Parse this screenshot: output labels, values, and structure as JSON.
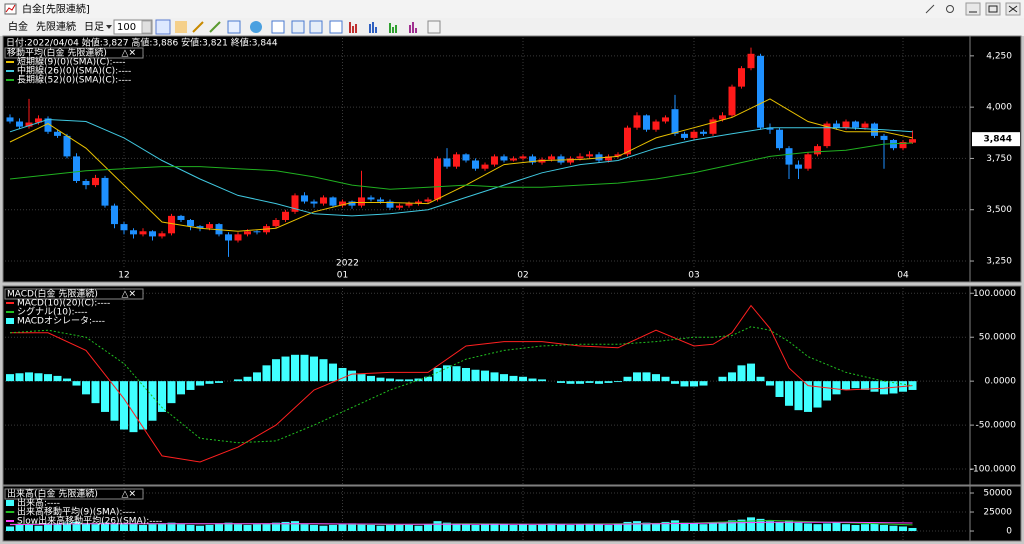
{
  "window": {
    "title": "白金[先限連続]"
  },
  "toolbar": {
    "symbol": "白金",
    "contract": "先限連続",
    "period": "日足",
    "count": 100
  },
  "chart_data": [
    {
      "type": "candlestick",
      "header": "日付:2022/04/04 始値:3,827 高値:3,886 安値:3,821 終値:3,844",
      "legend_title": "移動平均(白金 先限連続)",
      "up_color": "#ff1a1a",
      "down_color": "#1e90ff",
      "open": [
        3950,
        3930,
        3905,
        3925,
        3945,
        3880,
        3860,
        3760,
        3640,
        3620,
        3655,
        3520,
        3430,
        3400,
        3380,
        3395,
        3370,
        3385,
        3470,
        3450,
        3420,
        3410,
        3430,
        3380,
        3350,
        3380,
        3395,
        3390,
        3420,
        3450,
        3490,
        3570,
        3540,
        3530,
        3560,
        3520,
        3540,
        3520,
        3560,
        3550,
        3540,
        3510,
        3520,
        3530,
        3540,
        3550,
        3750,
        3710,
        3770,
        3740,
        3700,
        3720,
        3760,
        3740,
        3750,
        3760,
        3730,
        3745,
        3760,
        3730,
        3750,
        3760,
        3770,
        3740,
        3760,
        3770,
        3900,
        3960,
        3890,
        3930,
        3990,
        3870,
        3850,
        3880,
        3870,
        3940,
        3960,
        4100,
        4190,
        4250,
        3900,
        3890,
        3800,
        3720,
        3700,
        3770,
        3810,
        3920,
        3900,
        3930,
        3900,
        3920,
        3860,
        3840,
        3800,
        3827
      ],
      "high": [
        3965,
        3945,
        4040,
        3960,
        3955,
        3890,
        3870,
        3775,
        3650,
        3670,
        3665,
        3530,
        3440,
        3410,
        3410,
        3400,
        3395,
        3480,
        3475,
        3455,
        3425,
        3440,
        3435,
        3390,
        3390,
        3405,
        3400,
        3430,
        3460,
        3500,
        3580,
        3585,
        3550,
        3570,
        3565,
        3550,
        3545,
        3690,
        3570,
        3560,
        3550,
        3530,
        3540,
        3550,
        3560,
        3760,
        3800,
        3780,
        3775,
        3750,
        3730,
        3770,
        3770,
        3760,
        3770,
        3770,
        3755,
        3770,
        3770,
        3760,
        3775,
        3785,
        3780,
        3770,
        3780,
        3910,
        3975,
        3965,
        3940,
        3960,
        4060,
        3880,
        3890,
        3890,
        3950,
        3975,
        4110,
        4200,
        4290,
        4260,
        3920,
        3900,
        3810,
        3740,
        3780,
        3820,
        3930,
        3935,
        3940,
        3935,
        3930,
        3925,
        3870,
        3845,
        3840,
        3886
      ],
      "low": [
        3920,
        3895,
        3895,
        3915,
        3870,
        3850,
        3750,
        3630,
        3600,
        3610,
        3510,
        3410,
        3380,
        3360,
        3370,
        3350,
        3360,
        3375,
        3440,
        3400,
        3395,
        3400,
        3370,
        3270,
        3340,
        3370,
        3380,
        3380,
        3410,
        3440,
        3480,
        3530,
        3510,
        3520,
        3510,
        3510,
        3505,
        3510,
        3540,
        3530,
        3500,
        3500,
        3510,
        3520,
        3530,
        3540,
        3700,
        3700,
        3730,
        3690,
        3690,
        3710,
        3730,
        3735,
        3740,
        3720,
        3720,
        3735,
        3720,
        3720,
        3740,
        3750,
        3730,
        3730,
        3750,
        3760,
        3890,
        3880,
        3880,
        3920,
        3860,
        3840,
        3840,
        3860,
        3860,
        3930,
        3950,
        4090,
        4180,
        3890,
        3870,
        3790,
        3650,
        3650,
        3690,
        3760,
        3800,
        3890,
        3890,
        3890,
        3890,
        3850,
        3700,
        3790,
        3790,
        3821
      ],
      "close": [
        3930,
        3905,
        3925,
        3945,
        3880,
        3860,
        3760,
        3640,
        3620,
        3655,
        3520,
        3430,
        3400,
        3380,
        3395,
        3370,
        3385,
        3470,
        3450,
        3420,
        3410,
        3430,
        3380,
        3350,
        3380,
        3395,
        3390,
        3420,
        3450,
        3490,
        3570,
        3540,
        3530,
        3560,
        3520,
        3540,
        3520,
        3560,
        3550,
        3540,
        3510,
        3520,
        3530,
        3540,
        3550,
        3750,
        3710,
        3770,
        3740,
        3700,
        3720,
        3760,
        3740,
        3750,
        3760,
        3730,
        3745,
        3760,
        3730,
        3750,
        3760,
        3770,
        3740,
        3760,
        3770,
        3900,
        3960,
        3890,
        3930,
        3950,
        3870,
        3850,
        3880,
        3870,
        3940,
        3960,
        4100,
        4190,
        4260,
        3900,
        3890,
        3800,
        3720,
        3700,
        3770,
        3810,
        3920,
        3900,
        3930,
        3900,
        3920,
        3860,
        3840,
        3800,
        3830,
        3844
      ],
      "series": [
        {
          "name": "短期線(9)(0)(SMA)(C):----",
          "color": "#e8c000",
          "x": [
            0,
            4,
            8,
            12,
            16,
            20,
            24,
            28,
            32,
            36,
            40,
            44,
            48,
            52,
            56,
            60,
            64,
            68,
            72,
            76,
            80,
            84,
            88,
            92,
            95
          ],
          "values": [
            3830,
            3920,
            3800,
            3620,
            3440,
            3410,
            3395,
            3410,
            3490,
            3535,
            3535,
            3530,
            3620,
            3720,
            3740,
            3745,
            3760,
            3850,
            3900,
            3950,
            4040,
            3930,
            3880,
            3880,
            3850
          ]
        },
        {
          "name": "中期線(26)(0)(SMA)(C):----",
          "color": "#40c8e0",
          "x": [
            0,
            4,
            8,
            12,
            16,
            20,
            24,
            28,
            32,
            36,
            40,
            44,
            48,
            52,
            56,
            60,
            64,
            68,
            72,
            76,
            80,
            84,
            88,
            92,
            95
          ],
          "values": [
            3880,
            3940,
            3930,
            3850,
            3740,
            3650,
            3570,
            3530,
            3480,
            3470,
            3480,
            3500,
            3560,
            3620,
            3680,
            3720,
            3740,
            3800,
            3840,
            3870,
            3900,
            3900,
            3900,
            3890,
            3880
          ]
        },
        {
          "name": "長期線(52)(0)(SMA)(C):----",
          "color": "#20b020",
          "x": [
            0,
            4,
            8,
            12,
            16,
            20,
            24,
            28,
            32,
            36,
            40,
            44,
            48,
            52,
            56,
            60,
            64,
            68,
            72,
            76,
            80,
            84,
            88,
            92,
            95
          ],
          "values": [
            3650,
            3670,
            3690,
            3700,
            3710,
            3710,
            3700,
            3690,
            3660,
            3620,
            3600,
            3610,
            3620,
            3610,
            3610,
            3620,
            3630,
            3650,
            3680,
            3720,
            3760,
            3780,
            3790,
            3820,
            3825
          ]
        }
      ],
      "ylim": [
        3216,
        4337
      ],
      "yticks": [
        {
          "value": 3250,
          "label": "3,250"
        },
        {
          "value": 3500,
          "label": "3,500"
        },
        {
          "value": 3750,
          "label": "3,750"
        },
        {
          "value": 4000,
          "label": "4,000"
        },
        {
          "value": 4250,
          "label": "4,250"
        }
      ],
      "xticks": [
        12,
        {
          "value": 35,
          "label": "01"
        },
        {
          "value": 54,
          "label": "02"
        },
        {
          "value": 72,
          "label": "03"
        },
        {
          "value": 94,
          "label": "04"
        }
      ],
      "year_label": "2022",
      "last_price": {
        "value": 3844,
        "label": "3,844"
      },
      "grid": true
    },
    {
      "type": "macd",
      "legend_title": "MACD(白金 先限連続)",
      "series": [
        {
          "name": "MACD(10)(20)(C):----",
          "color": "#ff2020",
          "x": [
            0,
            4,
            8,
            12,
            16,
            20,
            24,
            28,
            32,
            36,
            40,
            44,
            48,
            52,
            56,
            60,
            64,
            68,
            72,
            74,
            76,
            78,
            80,
            82,
            84,
            88,
            92,
            95
          ],
          "values": [
            55,
            55,
            35,
            -20,
            -85,
            -92,
            -75,
            -50,
            -10,
            8,
            10,
            10,
            40,
            45,
            45,
            40,
            38,
            58,
            40,
            42,
            55,
            86,
            60,
            15,
            -5,
            -10,
            -8,
            -5
          ]
        },
        {
          "name": "シグナル(10):----",
          "color": "#20c020",
          "dashed": true,
          "x": [
            0,
            4,
            8,
            12,
            16,
            20,
            24,
            28,
            32,
            36,
            40,
            44,
            48,
            52,
            56,
            60,
            64,
            68,
            72,
            74,
            76,
            78,
            80,
            82,
            84,
            88,
            92,
            95
          ],
          "values": [
            55,
            58,
            50,
            20,
            -30,
            -65,
            -70,
            -68,
            -50,
            -30,
            -10,
            5,
            25,
            35,
            40,
            42,
            42,
            45,
            50,
            50,
            52,
            62,
            58,
            45,
            28,
            10,
            0,
            -5
          ]
        },
        {
          "name": "MACDオシレータ:----",
          "color": "#40ffff",
          "type": "bar",
          "values": [
            8,
            9,
            10,
            9,
            8,
            6,
            3,
            -5,
            -15,
            -25,
            -35,
            -45,
            -55,
            -58,
            -55,
            -45,
            -35,
            -25,
            -15,
            -10,
            -5,
            -3,
            -2,
            0,
            2,
            5,
            10,
            18,
            25,
            28,
            30,
            30,
            28,
            25,
            20,
            15,
            12,
            8,
            6,
            4,
            3,
            2,
            2,
            3,
            5,
            15,
            18,
            17,
            15,
            13,
            12,
            10,
            8,
            6,
            5,
            3,
            2,
            0,
            -2,
            -3,
            -3,
            -2,
            -3,
            -2,
            -1,
            5,
            10,
            10,
            8,
            5,
            -3,
            -6,
            -6,
            -5,
            0,
            5,
            10,
            18,
            20,
            5,
            -5,
            -18,
            -28,
            -33,
            -35,
            -30,
            -22,
            -15,
            -10,
            -8,
            -10,
            -12,
            -15,
            -14,
            -12,
            -10
          ]
        }
      ],
      "ylim": [
        -117,
        106
      ],
      "yticks": [
        {
          "value": 100,
          "label": "100.0000"
        },
        {
          "value": 50,
          "label": "50.0000"
        },
        {
          "value": 0,
          "label": "0.0000"
        },
        {
          "value": -50,
          "label": "-50.0000"
        },
        {
          "value": -100,
          "label": "-100.0000"
        }
      ],
      "grid": true
    },
    {
      "type": "volume",
      "legend_title": "出来高(白金 先限連続)",
      "series": [
        {
          "name": "出来高:----",
          "color": "#40ffff",
          "type": "bar",
          "values": [
            6000,
            8000,
            9000,
            7000,
            10000,
            9000,
            11000,
            12000,
            10000,
            9000,
            11000,
            10000,
            9000,
            10000,
            8000,
            9000,
            10000,
            11000,
            9000,
            8000,
            7000,
            8000,
            10000,
            11000,
            9000,
            8000,
            9000,
            10000,
            11000,
            12000,
            13000,
            9000,
            8000,
            7000,
            8000,
            9000,
            10000,
            9000,
            8000,
            7000,
            8000,
            9000,
            8000,
            7000,
            9000,
            13000,
            11000,
            10000,
            9000,
            8000,
            9000,
            10000,
            9000,
            8000,
            9000,
            8000,
            9000,
            10000,
            9000,
            8000,
            9000,
            10000,
            9000,
            8000,
            10000,
            12000,
            13000,
            11000,
            10000,
            12000,
            14000,
            11000,
            10000,
            9000,
            11000,
            12000,
            14000,
            15000,
            18000,
            16000,
            13000,
            12000,
            14000,
            11000,
            10000,
            9000,
            10000,
            11000,
            9000,
            8000,
            9000,
            10000,
            8000,
            7000,
            6000,
            4000
          ]
        },
        {
          "name": "出来高移動平均(9)(SMA):----",
          "color": "#20c020",
          "x": [
            0,
            8,
            16,
            24,
            32,
            40,
            48,
            56,
            64,
            72,
            80,
            88,
            95
          ],
          "values": [
            9000,
            10000,
            9500,
            9500,
            9500,
            8500,
            9500,
            9000,
            9500,
            10500,
            14000,
            11000,
            8000
          ]
        },
        {
          "name": "Slow出来高移動平均(26)(SMA):----",
          "color": "#ff40ff",
          "x": [
            0,
            8,
            16,
            24,
            32,
            40,
            48,
            56,
            64,
            72,
            80,
            88,
            95
          ],
          "values": [
            8500,
            9500,
            9500,
            9500,
            9500,
            9000,
            9000,
            9000,
            9000,
            10000,
            11500,
            11500,
            10500
          ]
        }
      ],
      "ylim": [
        -11800,
        56600
      ],
      "yticks": [
        0,
        25000,
        50000
      ],
      "grid": true
    }
  ]
}
